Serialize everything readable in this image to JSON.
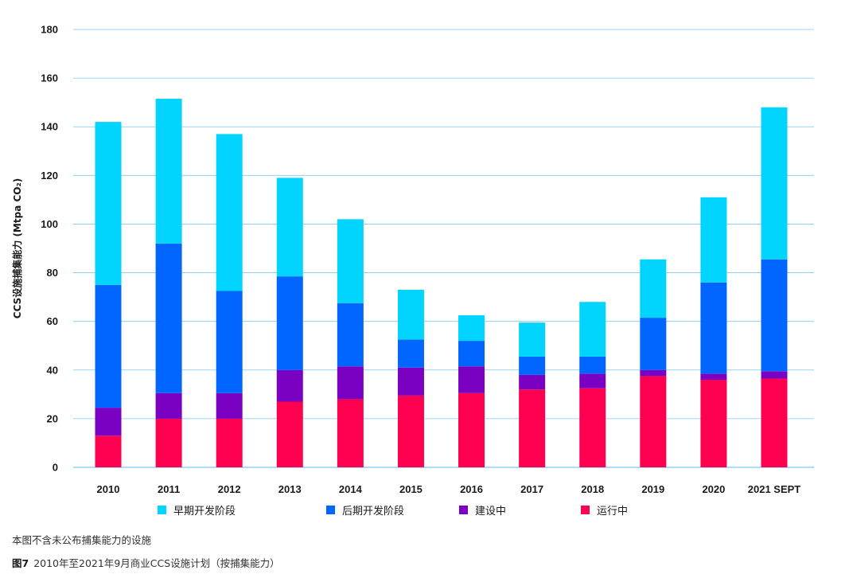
{
  "chart_data": {
    "type": "bar",
    "stacked": true,
    "categories": [
      "2010",
      "2011",
      "2012",
      "2013",
      "2014",
      "2015",
      "2016",
      "2017",
      "2018",
      "2019",
      "2020",
      "2021 SEPT"
    ],
    "series": [
      {
        "name": "运行中",
        "color": "#FF0050",
        "values": [
          13,
          20,
          20,
          27,
          28,
          29.5,
          30.5,
          32,
          32.5,
          37.5,
          36,
          36.5
        ]
      },
      {
        "name": "建设中",
        "color": "#7A00C2",
        "values": [
          11.5,
          10.5,
          10.5,
          13,
          13.5,
          11.5,
          11,
          6,
          6,
          2.5,
          2.5,
          3
        ]
      },
      {
        "name": "后期开发阶段",
        "color": "#0066FF",
        "values": [
          50.5,
          61.5,
          42,
          38.5,
          26,
          11.5,
          10.5,
          7.5,
          7,
          21.5,
          37.5,
          46
        ]
      },
      {
        "name": "早期开发阶段",
        "color": "#00D4FF",
        "values": [
          67,
          59.5,
          64.5,
          40.5,
          34.5,
          20.5,
          10.5,
          14,
          22.5,
          24,
          35,
          62.5
        ]
      }
    ],
    "ylabel": "CCS设施捕集能力  (Mtpa CO₂)",
    "ylim": [
      0,
      180
    ],
    "yticks": [
      0,
      20,
      40,
      60,
      80,
      100,
      120,
      140,
      160,
      180
    ],
    "grid": true,
    "legend_position": "bottom"
  },
  "legend": {
    "early": "早期开发阶段",
    "late": "后期开发阶段",
    "construction": "建设中",
    "operating": "运行中"
  },
  "colors": {
    "early": "#00D4FF",
    "late": "#0066FF",
    "construction": "#7A00C2",
    "operating": "#FF0050",
    "grid": "#7EC8F0"
  },
  "footer": {
    "note": "本图不含未公布捕集能力的设施",
    "figure_label": "图7",
    "caption": "2010年至2021年9月商业CCS设施计划（按捕集能力）"
  }
}
